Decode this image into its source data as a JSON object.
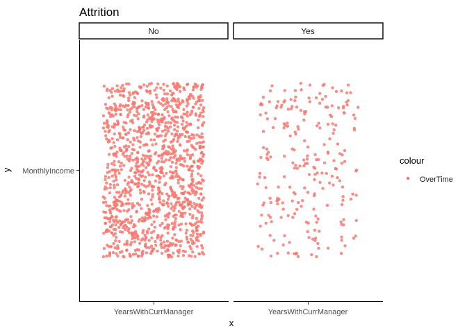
{
  "chart_data": {
    "type": "scatter",
    "title": "Attrition",
    "xlabel": "x",
    "ylabel": "y",
    "x_category": "YearsWithCurrManager",
    "y_category": "MonthlyIncome",
    "legend": {
      "title": "colour",
      "position": "right",
      "entries": [
        {
          "label": "OverTime",
          "color": "#F8766D"
        }
      ]
    },
    "grid": false,
    "panels": [
      {
        "label": "No",
        "point_count": 1233,
        "x_spread": [
          -0.4,
          0.4
        ],
        "y_spread": [
          -0.48,
          0.48
        ]
      },
      {
        "label": "Yes",
        "point_count": 237,
        "x_spread": [
          -0.4,
          0.4
        ],
        "y_spread": [
          -0.48,
          0.48
        ]
      }
    ],
    "note": "All points are jittered around a single discrete x position and a single discrete y position in each facet."
  },
  "colors": {
    "point": "#F8766D",
    "axis": "#000000",
    "tick_text": "#4d4d4d"
  }
}
